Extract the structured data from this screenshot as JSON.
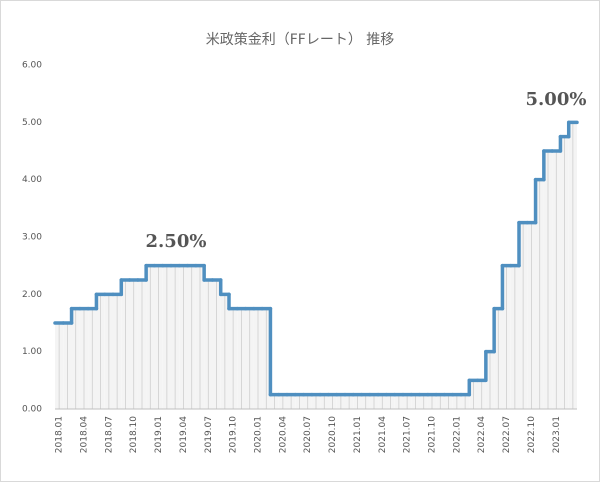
{
  "chart_data": {
    "type": "step-line",
    "title": "米政策金利（FFレート） 推移",
    "categories": [
      "2018.01",
      null,
      null,
      "2018.04",
      null,
      null,
      "2018.07",
      null,
      null,
      "2018.10",
      null,
      null,
      "2019.01",
      null,
      null,
      "2019.04",
      null,
      null,
      "2019.07",
      null,
      null,
      "2019.10",
      null,
      null,
      "2020.01",
      null,
      null,
      "2020.04",
      null,
      null,
      "2020.07",
      null,
      null,
      "2020.10",
      null,
      null,
      "2021.01",
      null,
      null,
      "2021.04",
      null,
      null,
      "2021.07",
      null,
      null,
      "2021.10",
      null,
      null,
      "2022.01",
      null,
      null,
      "2022.04",
      null,
      null,
      "2022.07",
      null,
      null,
      "2022.10",
      null,
      null,
      "2023.01",
      null,
      null
    ],
    "values": [
      1.5,
      1.5,
      1.75,
      1.75,
      1.75,
      2.0,
      2.0,
      2.0,
      2.25,
      2.25,
      2.25,
      2.5,
      2.5,
      2.5,
      2.5,
      2.5,
      2.5,
      2.5,
      2.25,
      2.25,
      2.0,
      1.75,
      1.75,
      1.75,
      1.75,
      1.75,
      0.25,
      0.25,
      0.25,
      0.25,
      0.25,
      0.25,
      0.25,
      0.25,
      0.25,
      0.25,
      0.25,
      0.25,
      0.25,
      0.25,
      0.25,
      0.25,
      0.25,
      0.25,
      0.25,
      0.25,
      0.25,
      0.25,
      0.25,
      0.25,
      0.5,
      0.5,
      1.0,
      1.75,
      2.5,
      2.5,
      3.25,
      3.25,
      4.0,
      4.5,
      4.5,
      4.75,
      5.0
    ],
    "color": "#4f8fc0",
    "ylim": [
      0,
      6
    ],
    "yticks": [
      {
        "value": 0,
        "label": "0.00"
      },
      {
        "value": 1,
        "label": "1.00"
      },
      {
        "value": 2,
        "label": "2.00"
      },
      {
        "value": 3,
        "label": "3.00"
      },
      {
        "value": 4,
        "label": "4.00"
      },
      {
        "value": 5,
        "label": "5.00"
      },
      {
        "value": 6,
        "label": "6.00"
      }
    ],
    "grid": false,
    "annotations": [
      "2.50%",
      "5.00%"
    ],
    "annotation_color": "#c00000"
  }
}
